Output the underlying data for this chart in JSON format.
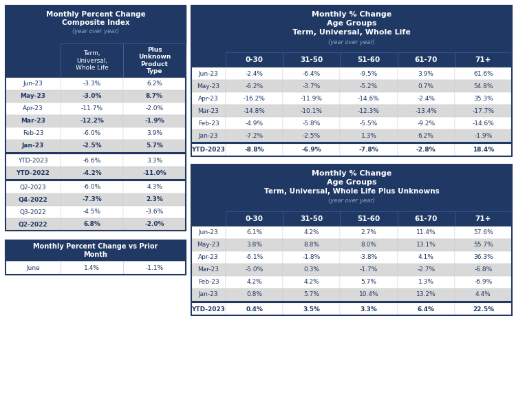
{
  "dark_blue": "#1F3864",
  "light_gray": "#D9D9D9",
  "mid_gray": "#BCBEC0",
  "white": "#FFFFFF",
  "text_dark": "#1F3864",
  "subtitle_color": "#8FA8C8",
  "left_table": {
    "rows": [
      [
        "Jun-23",
        "-3.3%",
        "6.2%"
      ],
      [
        "May-23",
        "-3.0%",
        "8.7%"
      ],
      [
        "Apr-23",
        "-11.7%",
        "-2.0%"
      ],
      [
        "Mar-23",
        "-12.2%",
        "-1.9%"
      ],
      [
        "Feb-23",
        "-6.0%",
        "3.9%"
      ],
      [
        "Jan-23",
        "-2.5%",
        "5.7%"
      ]
    ],
    "ytd_rows": [
      [
        "YTD-2023",
        "-6.6%",
        "3.3%"
      ],
      [
        "YTD-2022",
        "-4.2%",
        "-11.0%"
      ]
    ],
    "q_rows": [
      [
        "Q2-2023",
        "-6.0%",
        "4.3%"
      ],
      [
        "Q4-2022",
        "-7.3%",
        "2.3%"
      ],
      [
        "Q3-2022",
        "-4.5%",
        "-3.6%"
      ],
      [
        "Q2-2022",
        "6.8%",
        "-2.0%"
      ]
    ]
  },
  "top_right_table": {
    "col_headers": [
      "0-30",
      "31-50",
      "51-60",
      "61-70",
      "71+"
    ],
    "rows": [
      [
        "Jun-23",
        "-2.4%",
        "-6.4%",
        "-9.5%",
        "3.9%",
        "61.6%"
      ],
      [
        "May-23",
        "-6.2%",
        "-3.7%",
        "-5.2%",
        "0.7%",
        "54.8%"
      ],
      [
        "Apr-23",
        "-16.2%",
        "-11.9%",
        "-14.6%",
        "-2.4%",
        "35.3%"
      ],
      [
        "Mar-23",
        "-14.8%",
        "-10.1%",
        "-12.3%",
        "-13.4%",
        "-17.7%"
      ],
      [
        "Feb-23",
        "-4.9%",
        "-5.8%",
        "-5.5%",
        "-9.2%",
        "-14.6%"
      ],
      [
        "Jan-23",
        "-7.2%",
        "-2.5%",
        "1.3%",
        "6.2%",
        "-1.9%"
      ]
    ],
    "ytd_rows": [
      [
        "YTD-2023",
        "-8.8%",
        "-6.9%",
        "-7.8%",
        "-2.8%",
        "18.4%"
      ]
    ]
  },
  "bottom_right_table": {
    "col_headers": [
      "0-30",
      "31-50",
      "51-60",
      "61-70",
      "71+"
    ],
    "rows": [
      [
        "Jun-23",
        "6.1%",
        "4.2%",
        "2.7%",
        "11.4%",
        "57.6%"
      ],
      [
        "May-23",
        "3.8%",
        "8.8%",
        "8.0%",
        "13.1%",
        "55.7%"
      ],
      [
        "Apr-23",
        "-6.1%",
        "-1.8%",
        "-3.8%",
        "4.1%",
        "36.3%"
      ],
      [
        "Mar-23",
        "-5.0%",
        "0.3%",
        "-1.7%",
        "-2.7%",
        "-6.8%"
      ],
      [
        "Feb-23",
        "4.2%",
        "4.2%",
        "5.7%",
        "1.3%",
        "-6.9%"
      ],
      [
        "Jan-23",
        "0.8%",
        "5.7%",
        "10.4%",
        "13.2%",
        "4.4%"
      ]
    ],
    "ytd_rows": [
      [
        "YTD-2023",
        "0.4%",
        "3.5%",
        "3.3%",
        "6.4%",
        "22.5%"
      ]
    ]
  }
}
